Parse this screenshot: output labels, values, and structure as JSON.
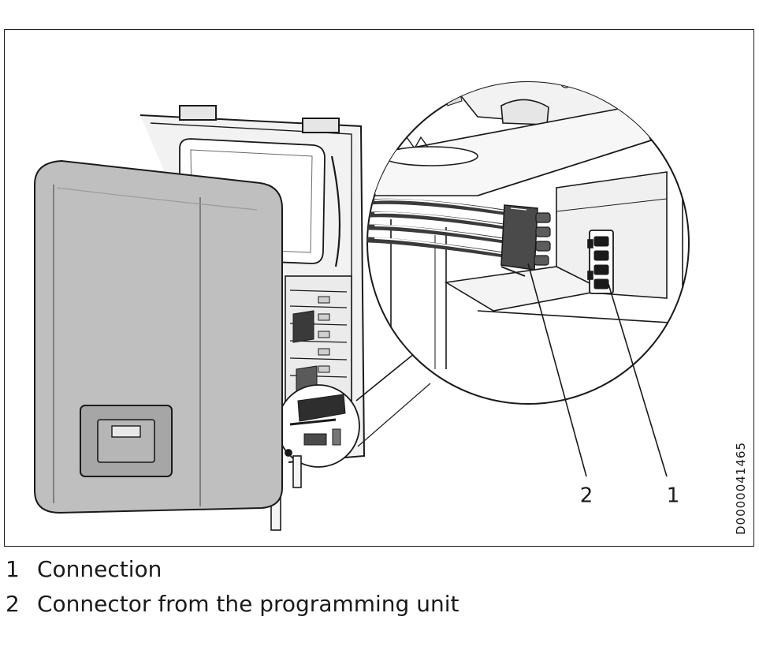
{
  "figure": {
    "callouts": [
      {
        "number": "2"
      },
      {
        "number": "1"
      }
    ],
    "document_id": "D0000041465"
  },
  "legend": [
    {
      "number": "1",
      "text": "Connection"
    },
    {
      "number": "2",
      "text": "Connector from the programming unit"
    }
  ]
}
